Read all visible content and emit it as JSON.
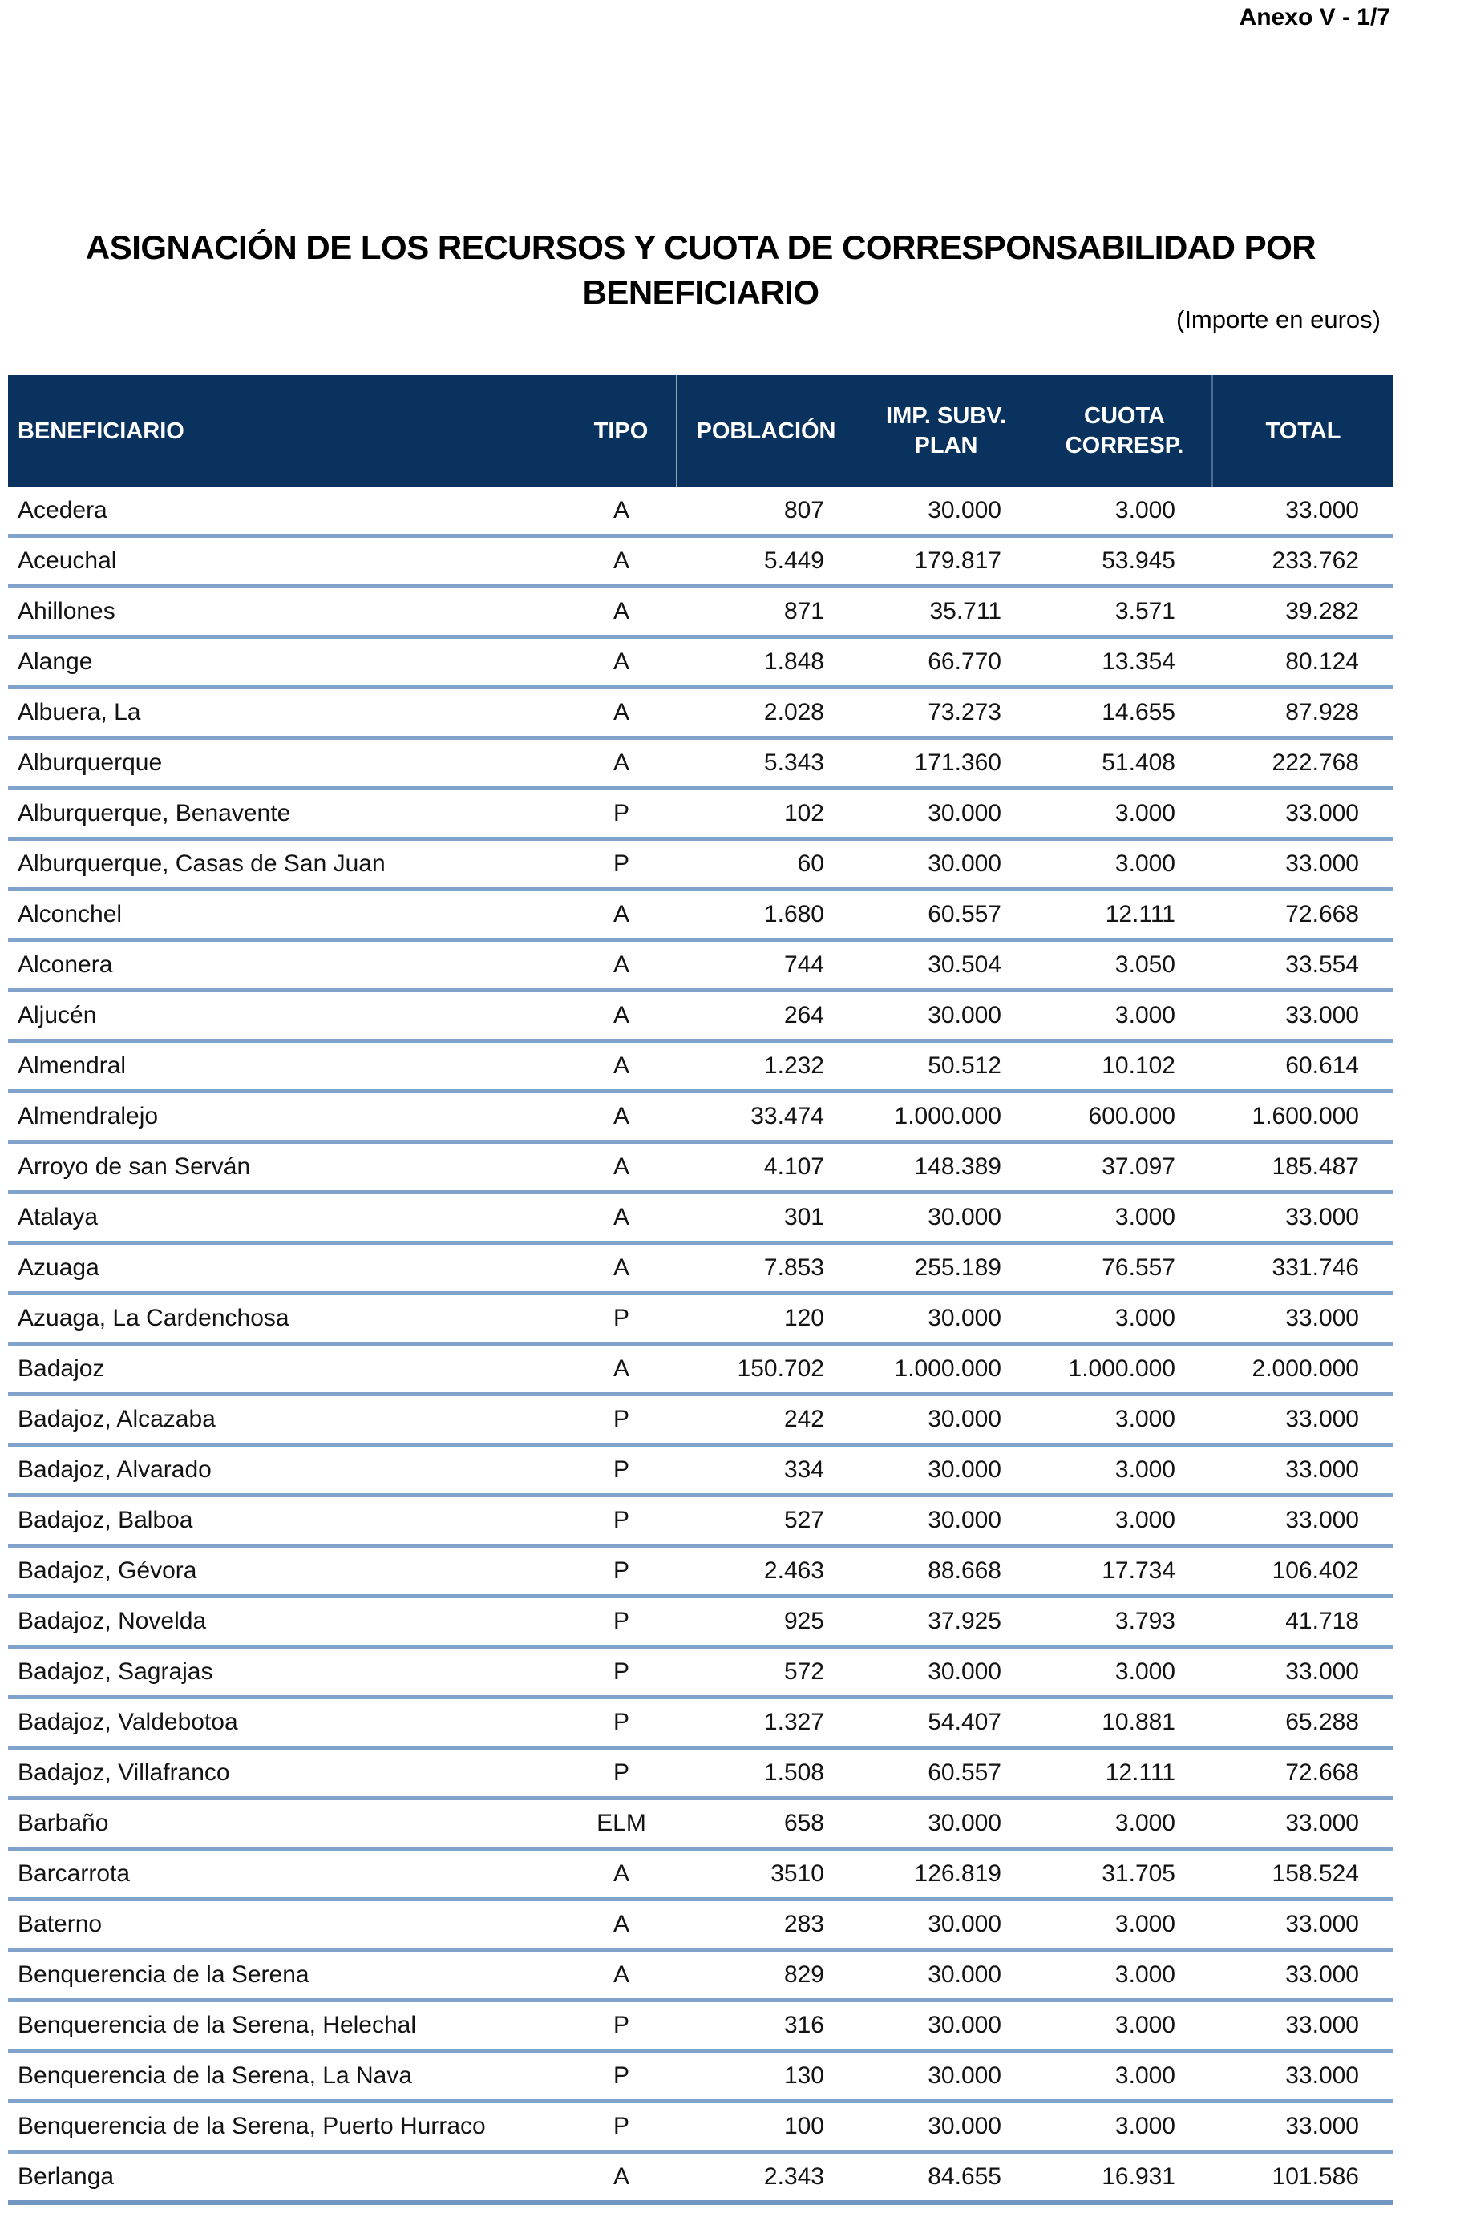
{
  "page": {
    "anexo_label": "Anexo V - 1/7",
    "title_line1": "ASIGNACIÓN DE LOS RECURSOS Y CUOTA DE CORRESPONSABILIDAD POR",
    "title_line2": "BENEFICIARIO",
    "importe_note": "(Importe en euros)"
  },
  "colors": {
    "header_bg": "#09335e",
    "row_separator": "#7fa3cb",
    "bottom_border": "#7296c0"
  },
  "table": {
    "columns": [
      {
        "id": "beneficiario",
        "lines": [
          "BENEFICIARIO"
        ]
      },
      {
        "id": "tipo",
        "lines": [
          "TIPO"
        ]
      },
      {
        "id": "poblacion",
        "lines": [
          "POBLACIÓN"
        ]
      },
      {
        "id": "imp-subv-plan",
        "lines": [
          "IMP. SUBV.",
          "PLAN"
        ]
      },
      {
        "id": "cuota-corresp",
        "lines": [
          "CUOTA",
          "CORRESP."
        ]
      },
      {
        "id": "total",
        "lines": [
          "TOTAL"
        ]
      }
    ],
    "rows": [
      [
        "Acedera",
        "A",
        "807",
        "30.000",
        "3.000",
        "33.000"
      ],
      [
        "Aceuchal",
        "A",
        "5.449",
        "179.817",
        "53.945",
        "233.762"
      ],
      [
        "Ahillones",
        "A",
        "871",
        "35.711",
        "3.571",
        "39.282"
      ],
      [
        "Alange",
        "A",
        "1.848",
        "66.770",
        "13.354",
        "80.124"
      ],
      [
        "Albuera, La",
        "A",
        "2.028",
        "73.273",
        "14.655",
        "87.928"
      ],
      [
        "Alburquerque",
        "A",
        "5.343",
        "171.360",
        "51.408",
        "222.768"
      ],
      [
        "Alburquerque, Benavente",
        "P",
        "102",
        "30.000",
        "3.000",
        "33.000"
      ],
      [
        "Alburquerque, Casas de San Juan",
        "P",
        "60",
        "30.000",
        "3.000",
        "33.000"
      ],
      [
        "Alconchel",
        "A",
        "1.680",
        "60.557",
        "12.111",
        "72.668"
      ],
      [
        "Alconera",
        "A",
        "744",
        "30.504",
        "3.050",
        "33.554"
      ],
      [
        "Aljucén",
        "A",
        "264",
        "30.000",
        "3.000",
        "33.000"
      ],
      [
        "Almendral",
        "A",
        "1.232",
        "50.512",
        "10.102",
        "60.614"
      ],
      [
        "Almendralejo",
        "A",
        "33.474",
        "1.000.000",
        "600.000",
        "1.600.000"
      ],
      [
        "Arroyo de san Serván",
        "A",
        "4.107",
        "148.389",
        "37.097",
        "185.487"
      ],
      [
        "Atalaya",
        "A",
        "301",
        "30.000",
        "3.000",
        "33.000"
      ],
      [
        "Azuaga",
        "A",
        "7.853",
        "255.189",
        "76.557",
        "331.746"
      ],
      [
        "Azuaga, La Cardenchosa",
        "P",
        "120",
        "30.000",
        "3.000",
        "33.000"
      ],
      [
        "Badajoz",
        "A",
        "150.702",
        "1.000.000",
        "1.000.000",
        "2.000.000"
      ],
      [
        "Badajoz, Alcazaba",
        "P",
        "242",
        "30.000",
        "3.000",
        "33.000"
      ],
      [
        "Badajoz, Alvarado",
        "P",
        "334",
        "30.000",
        "3.000",
        "33.000"
      ],
      [
        "Badajoz, Balboa",
        "P",
        "527",
        "30.000",
        "3.000",
        "33.000"
      ],
      [
        "Badajoz, Gévora",
        "P",
        "2.463",
        "88.668",
        "17.734",
        "106.402"
      ],
      [
        "Badajoz, Novelda",
        "P",
        "925",
        "37.925",
        "3.793",
        "41.718"
      ],
      [
        "Badajoz, Sagrajas",
        "P",
        "572",
        "30.000",
        "3.000",
        "33.000"
      ],
      [
        "Badajoz, Valdebotoa",
        "P",
        "1.327",
        "54.407",
        "10.881",
        "65.288"
      ],
      [
        "Badajoz, Villafranco",
        "P",
        "1.508",
        "60.557",
        "12.111",
        "72.668"
      ],
      [
        "Barbaño",
        "ELM",
        "658",
        "30.000",
        "3.000",
        "33.000"
      ],
      [
        "Barcarrota",
        "A",
        "3510",
        "126.819",
        "31.705",
        "158.524"
      ],
      [
        "Baterno",
        "A",
        "283",
        "30.000",
        "3.000",
        "33.000"
      ],
      [
        "Benquerencia de la Serena",
        "A",
        "829",
        "30.000",
        "3.000",
        "33.000"
      ],
      [
        "Benquerencia de la Serena, Helechal",
        "P",
        "316",
        "30.000",
        "3.000",
        "33.000"
      ],
      [
        "Benquerencia de la Serena, La Nava",
        "P",
        "130",
        "30.000",
        "3.000",
        "33.000"
      ],
      [
        "Benquerencia de la Serena, Puerto Hurraco",
        "P",
        "100",
        "30.000",
        "3.000",
        "33.000"
      ],
      [
        "Berlanga",
        "A",
        "2.343",
        "84.655",
        "16.931",
        "101.586"
      ]
    ]
  }
}
